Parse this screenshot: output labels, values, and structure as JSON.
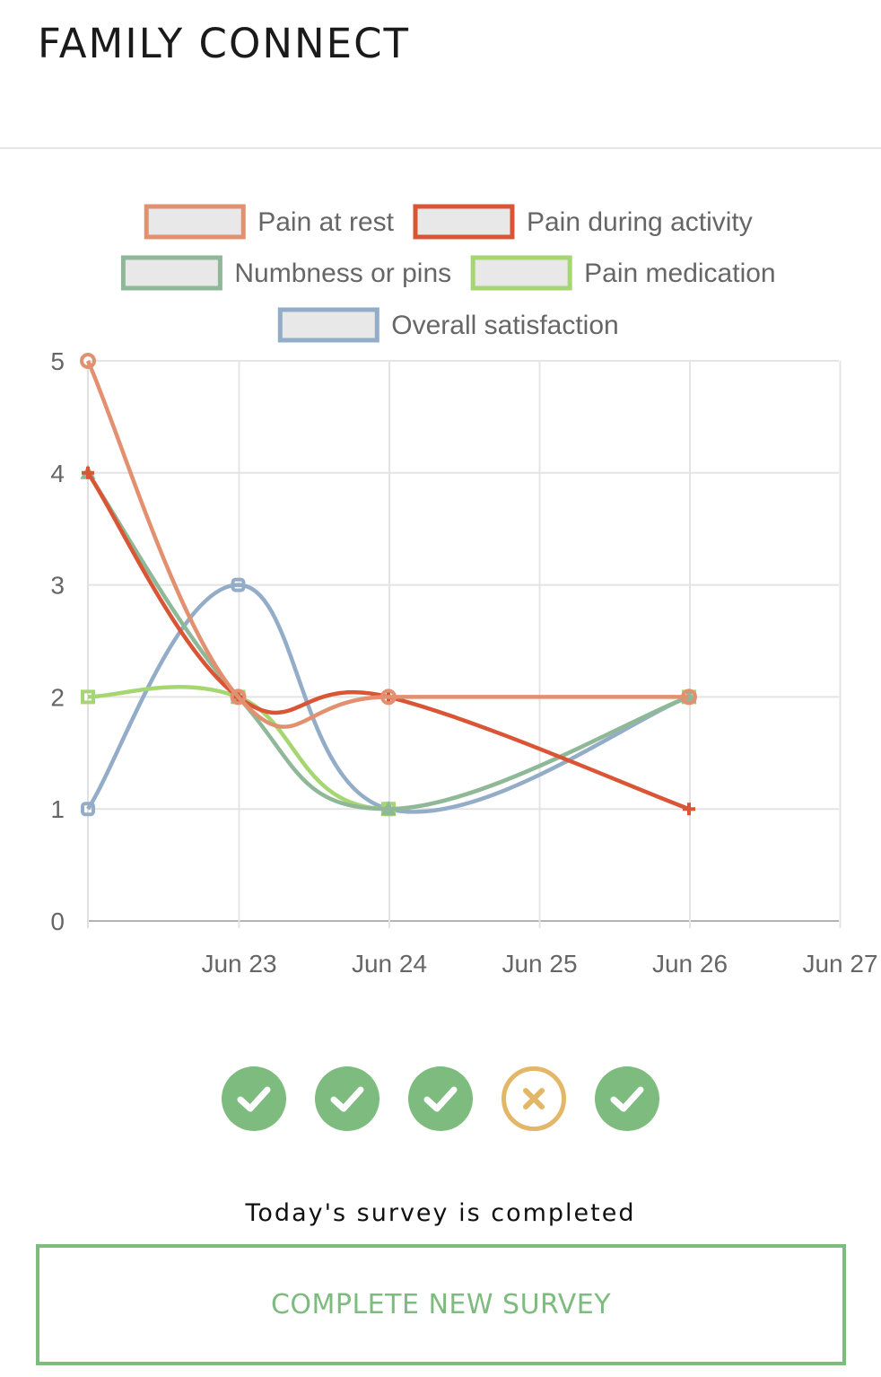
{
  "app": {
    "title": "FAMILY CONNECT"
  },
  "chart_data": {
    "type": "line",
    "x": [
      "2023-06-22",
      "2023-06-23",
      "2023-06-24",
      "2023-06-26"
    ],
    "x_tick_labels": [
      "Jun 23",
      "Jun 24",
      "Jun 25",
      "Jun 26",
      "Jun 27"
    ],
    "ylim": [
      0,
      5
    ],
    "y_ticks": [
      "0",
      "1",
      "2",
      "3",
      "4",
      "5"
    ],
    "grid": true,
    "legend_position": "top",
    "series": [
      {
        "name": "Pain at rest",
        "values": [
          5,
          2,
          2,
          2
        ],
        "color": "#e29070",
        "marker": "circle"
      },
      {
        "name": "Pain during activity",
        "values": [
          4,
          2,
          2,
          1
        ],
        "color": "#d95535",
        "marker": "cross"
      },
      {
        "name": "Numbness or pins",
        "values": [
          4,
          2,
          1,
          2
        ],
        "color": "#8fb898",
        "marker": "triangle"
      },
      {
        "name": "Pain medication",
        "values": [
          2,
          2,
          1,
          2
        ],
        "color": "#a6d672",
        "marker": "square"
      },
      {
        "name": "Overall satisfaction",
        "values": [
          1,
          3,
          1,
          2
        ],
        "color": "#93acc7",
        "marker": "rounded-square"
      }
    ]
  },
  "survey_status": [
    {
      "state": "completed",
      "icon": "check-icon"
    },
    {
      "state": "completed",
      "icon": "check-icon"
    },
    {
      "state": "completed",
      "icon": "check-icon"
    },
    {
      "state": "missed",
      "icon": "x-icon"
    },
    {
      "state": "completed",
      "icon": "check-icon"
    }
  ],
  "colors": {
    "success": "#7dbb7e",
    "warning": "#e3b768"
  },
  "status_message": "Today's survey is completed",
  "actions": {
    "new_survey_label": "COMPLETE NEW SURVEY"
  }
}
